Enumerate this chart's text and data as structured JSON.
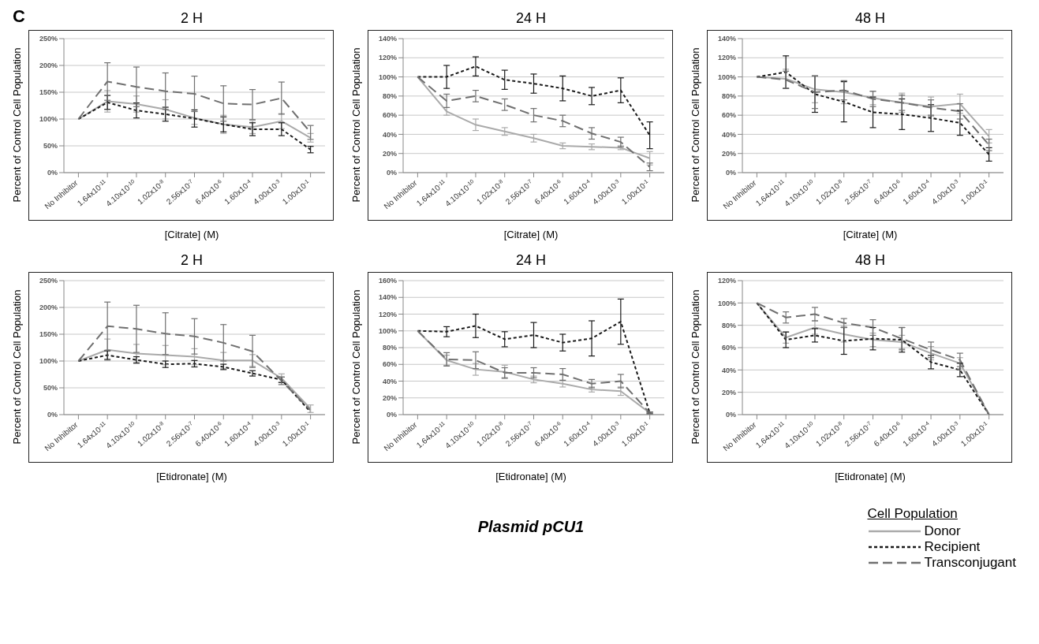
{
  "chart_data": [
    {
      "type": "line",
      "title": "2 H",
      "xlabel": "[Citrate] (M)",
      "ylabel": "Percent of Control Cell Population",
      "annotations": [
        "C"
      ],
      "categories": [
        "No Inhibitor",
        "1.64x10$^{-11}$",
        "4.10x10$^{-10}$",
        "1.02x10$^{-8}$",
        "2.56x10$^{-7}$",
        "6.40x10$^{-6}$",
        "1.60x10$^{-4}$",
        "4.00x10$^{-3}$",
        "1.00x10$^{-1}$"
      ],
      "ylim": [
        0,
        250
      ],
      "yticks": [
        {
          "value": 0,
          "label": "0%"
        },
        {
          "value": 50,
          "label": "50%"
        },
        {
          "value": 100,
          "label": "100%"
        },
        {
          "value": 150,
          "label": "150%"
        },
        {
          "value": 200,
          "label": "200%"
        },
        {
          "value": 250,
          "label": "250%"
        }
      ],
      "grid": "y",
      "marker": "none",
      "legend": false,
      "series": [
        {
          "color": "#aaaaaa",
          "line_style": "solid",
          "values": [
            100,
            133,
            128,
            118,
            102,
            90,
            85,
            96,
            65
          ],
          "errors": [
            null,
            20,
            15,
            18,
            12,
            17,
            12,
            14,
            8
          ]
        },
        {
          "color": "#1a1a1a",
          "line_style": "dotted",
          "values": [
            100,
            131,
            116,
            109,
            101,
            90,
            81,
            81,
            43
          ],
          "errors": [
            null,
            13,
            14,
            13,
            16,
            14,
            12,
            12,
            6
          ]
        },
        {
          "color": "#707070",
          "line_style": "dashed",
          "values": [
            100,
            170,
            160,
            152,
            147,
            129,
            127,
            139,
            75
          ],
          "errors": [
            null,
            35,
            37,
            34,
            33,
            33,
            28,
            30,
            13
          ]
        }
      ]
    },
    {
      "type": "line",
      "title": "24 H",
      "xlabel": "[Citrate] (M)",
      "ylabel": "Percent of Control Cell Population",
      "categories": [
        "No Inhibitor",
        "1.64x10$^{-11}$",
        "4.10x10$^{-10}$",
        "1.02x10$^{-8}$",
        "2.56x10$^{-7}$",
        "6.40x10$^{-6}$",
        "1.60x10$^{-4}$",
        "4.00x10$^{-3}$",
        "1.00x10$^{-1}$"
      ],
      "ylim": [
        0,
        140
      ],
      "yticks": [
        {
          "value": 0,
          "label": "0%"
        },
        {
          "value": 20,
          "label": "20%"
        },
        {
          "value": 40,
          "label": "40%"
        },
        {
          "value": 60,
          "label": "60%"
        },
        {
          "value": 80,
          "label": "80%"
        },
        {
          "value": 100,
          "label": "100%"
        },
        {
          "value": 120,
          "label": "120%"
        },
        {
          "value": 140,
          "label": "140%"
        }
      ],
      "grid": "y",
      "marker": "none",
      "legend": false,
      "series": [
        {
          "color": "#aaaaaa",
          "line_style": "solid",
          "values": [
            100,
            64,
            50,
            43,
            36,
            28,
            27,
            26,
            15
          ],
          "errors": [
            null,
            4,
            6,
            4,
            4,
            3,
            3,
            2,
            7
          ]
        },
        {
          "color": "#1a1a1a",
          "line_style": "dotted",
          "values": [
            100,
            100,
            111,
            97,
            93,
            88,
            80,
            86,
            39
          ],
          "errors": [
            null,
            12,
            10,
            10,
            10,
            13,
            9,
            13,
            14
          ]
        },
        {
          "color": "#707070",
          "line_style": "dashed",
          "values": [
            100,
            75,
            80,
            71,
            60,
            54,
            41,
            32,
            6
          ],
          "errors": [
            null,
            7,
            6,
            6,
            7,
            6,
            6,
            5,
            4
          ]
        }
      ]
    },
    {
      "type": "line",
      "title": "48 H",
      "xlabel": "[Citrate] (M)",
      "ylabel": "Percent of Control Cell Population",
      "categories": [
        "No Inhibitor",
        "1.64x10$^{-11}$",
        "4.10x10$^{-10}$",
        "1.02x10$^{-8}$",
        "2.56x10$^{-7}$",
        "6.40x10$^{-6}$",
        "1.60x10$^{-4}$",
        "4.00x10$^{-3}$",
        "1.00x10$^{-1}$"
      ],
      "ylim": [
        0,
        140
      ],
      "yticks": [
        {
          "value": 0,
          "label": "0%"
        },
        {
          "value": 20,
          "label": "20%"
        },
        {
          "value": 40,
          "label": "40%"
        },
        {
          "value": 60,
          "label": "60%"
        },
        {
          "value": 80,
          "label": "80%"
        },
        {
          "value": 100,
          "label": "100%"
        },
        {
          "value": 120,
          "label": "120%"
        },
        {
          "value": 140,
          "label": "140%"
        }
      ],
      "grid": "y",
      "marker": "none",
      "legend": false,
      "series": [
        {
          "color": "#aaaaaa",
          "line_style": "solid",
          "values": [
            100,
            98,
            87,
            84,
            78,
            73,
            69,
            72,
            38
          ],
          "errors": [
            null,
            10,
            14,
            12,
            7,
            10,
            10,
            10,
            7
          ]
        },
        {
          "color": "#1a1a1a",
          "line_style": "dotted",
          "values": [
            100,
            105,
            82,
            74,
            63,
            61,
            57,
            52,
            19
          ],
          "errors": [
            null,
            17,
            19,
            21,
            16,
            16,
            14,
            13,
            7
          ]
        },
        {
          "color": "#707070",
          "line_style": "dashed",
          "values": [
            100,
            97,
            84,
            86,
            77,
            73,
            68,
            64,
            29
          ],
          "errors": [
            null,
            9,
            17,
            10,
            8,
            8,
            8,
            8,
            6
          ]
        }
      ]
    },
    {
      "type": "line",
      "title": "2 H",
      "xlabel": "[Etidronate] (M)",
      "ylabel": "Percent of Control Cell Population",
      "categories": [
        "No Inhibitor",
        "1.64x10$^{-11}$",
        "4.10x10$^{-10}$",
        "1.02x10$^{-8}$",
        "2.56x10$^{-7}$",
        "6.40x10$^{-6}$",
        "1.60x10$^{-4}$",
        "4.00x10$^{-3}$",
        "1.00x10$^{-1}$"
      ],
      "ylim": [
        0,
        250
      ],
      "yticks": [
        {
          "value": 0,
          "label": "0%"
        },
        {
          "value": 50,
          "label": "50%"
        },
        {
          "value": 100,
          "label": "100%"
        },
        {
          "value": 150,
          "label": "150%"
        },
        {
          "value": 200,
          "label": "200%"
        },
        {
          "value": 250,
          "label": "250%"
        }
      ],
      "grid": "y",
      "marker": "none",
      "legend": false,
      "series": [
        {
          "color": "#aaaaaa",
          "line_style": "solid",
          "values": [
            100,
            121,
            114,
            111,
            108,
            101,
            101,
            68,
            11
          ],
          "errors": [
            null,
            20,
            17,
            18,
            15,
            15,
            11,
            8,
            7
          ]
        },
        {
          "color": "#1a1a1a",
          "line_style": "dotted",
          "values": [
            100,
            111,
            102,
            94,
            95,
            89,
            77,
            65,
            5
          ],
          "errors": [
            null,
            8,
            6,
            6,
            6,
            5,
            5,
            5,
            null
          ]
        },
        {
          "color": "#707070",
          "line_style": "dashed",
          "values": [
            100,
            165,
            160,
            151,
            146,
            134,
            118,
            63,
            8
          ],
          "errors": [
            null,
            45,
            44,
            39,
            33,
            34,
            30,
            7,
            null
          ]
        }
      ]
    },
    {
      "type": "line",
      "title": "24 H",
      "xlabel": "[Etidronate] (M)",
      "ylabel": "Percent of Control Cell Population",
      "annotations": [
        "Plasmid pCU1"
      ],
      "categories": [
        "No Inhibitor",
        "1.64x10$^{-11}$",
        "4.10x10$^{-10}$",
        "1.02x10$^{-8}$",
        "2.56x10$^{-7}$",
        "6.40x10$^{-6}$",
        "1.60x10$^{-4}$",
        "4.00x10$^{-3}$",
        "1.00x10$^{-1}$"
      ],
      "ylim": [
        0,
        160
      ],
      "yticks": [
        {
          "value": 0,
          "label": "0%"
        },
        {
          "value": 20,
          "label": "20%"
        },
        {
          "value": 40,
          "label": "40%"
        },
        {
          "value": 60,
          "label": "60%"
        },
        {
          "value": 80,
          "label": "80%"
        },
        {
          "value": 100,
          "label": "100%"
        },
        {
          "value": 120,
          "label": "120%"
        },
        {
          "value": 140,
          "label": "140%"
        },
        {
          "value": 160,
          "label": "160%"
        }
      ],
      "grid": "y",
      "marker": "none",
      "legend": false,
      "series": [
        {
          "color": "#aaaaaa",
          "line_style": "solid",
          "values": [
            100,
            65,
            54,
            51,
            42,
            37,
            30,
            28,
            2
          ],
          "errors": [
            null,
            6,
            7,
            8,
            4,
            4,
            3,
            5,
            1
          ]
        },
        {
          "color": "#1a1a1a",
          "line_style": "dotted",
          "values": [
            100,
            99,
            106,
            90,
            95,
            86,
            91,
            111,
            2
          ],
          "errors": [
            null,
            6,
            14,
            9,
            15,
            10,
            21,
            27,
            1
          ]
        },
        {
          "color": "#707070",
          "line_style": "dashed",
          "values": [
            100,
            66,
            65,
            50,
            50,
            48,
            37,
            40,
            2
          ],
          "errors": [
            null,
            8,
            10,
            6,
            6,
            7,
            5,
            8,
            1
          ]
        }
      ]
    },
    {
      "type": "line",
      "title": "48 H",
      "xlabel": "[Etidronate] (M)",
      "ylabel": "Percent of Control Cell Population",
      "legend_title": "Cell Population",
      "categories": [
        "No Inhibitor",
        "1.64x10$^{-11}$",
        "4.10x10$^{-10}$",
        "1.02x10$^{-8}$",
        "2.56x10$^{-7}$",
        "6.40x10$^{-6}$",
        "1.60x10$^{-4}$",
        "4.00x10$^{-3}$",
        "1.00x10$^{-1}$"
      ],
      "ylim": [
        0,
        120
      ],
      "yticks": [
        {
          "value": 0,
          "label": "0%"
        },
        {
          "value": 20,
          "label": "20%"
        },
        {
          "value": 40,
          "label": "40%"
        },
        {
          "value": 60,
          "label": "60%"
        },
        {
          "value": 80,
          "label": "80%"
        },
        {
          "value": 100,
          "label": "100%"
        },
        {
          "value": 120,
          "label": "120%"
        }
      ],
      "grid": "y",
      "marker": "none",
      "legend": "bottom right",
      "series": [
        {
          "name": "Donor",
          "color": "#aaaaaa",
          "line_style": "solid",
          "values": [
            100,
            69,
            78,
            72,
            67,
            65,
            55,
            46,
            0
          ],
          "errors": [
            null,
            5,
            6,
            7,
            6,
            6,
            6,
            5,
            0
          ]
        },
        {
          "name": "Recipient",
          "color": "#1a1a1a",
          "line_style": "dotted",
          "values": [
            100,
            67,
            71,
            66,
            68,
            67,
            47,
            40,
            0
          ],
          "errors": [
            null,
            7,
            6,
            12,
            10,
            11,
            6,
            6,
            0
          ]
        },
        {
          "name": "Transconjugant",
          "color": "#707070",
          "line_style": "dashed",
          "values": [
            100,
            87,
            90,
            82,
            78,
            68,
            58,
            49,
            0
          ],
          "errors": [
            null,
            5,
            6,
            4,
            7,
            10,
            7,
            6,
            0
          ]
        }
      ]
    }
  ]
}
